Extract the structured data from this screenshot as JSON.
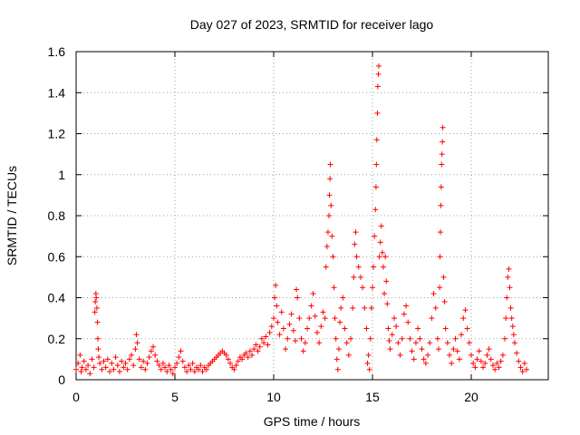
{
  "chart_data": {
    "type": "scatter",
    "title": "Day 027 of 2023, SRMTID for receiver lago",
    "xlabel": "GPS time / hours",
    "ylabel": "SRMTID / TECUs",
    "xlim": [
      0,
      23.9
    ],
    "ylim": [
      0,
      1.6
    ],
    "x_ticks": [
      0,
      5,
      10,
      15,
      20
    ],
    "x_tick_labels": [
      "0",
      "5",
      "10",
      "15",
      "20"
    ],
    "y_ticks": [
      0,
      0.2,
      0.4,
      0.6,
      0.8,
      1.0,
      1.2,
      1.4,
      1.6
    ],
    "y_tick_labels": [
      "0",
      "0.2",
      "0.4",
      "0.6",
      "0.8",
      "1",
      "1.2",
      "1.4",
      "1.6"
    ],
    "grid": true,
    "marker": "+",
    "color": "#ff0000",
    "series": [
      {
        "name": "SRMTID",
        "points": [
          [
            0.0,
            0.05
          ],
          [
            0.1,
            0.08
          ],
          [
            0.2,
            0.12
          ],
          [
            0.25,
            0.04
          ],
          [
            0.3,
            0.06
          ],
          [
            0.4,
            0.09
          ],
          [
            0.5,
            0.05
          ],
          [
            0.6,
            0.07
          ],
          [
            0.7,
            0.03
          ],
          [
            0.8,
            0.1
          ],
          [
            0.9,
            0.06
          ],
          [
            0.95,
            0.33
          ],
          [
            0.97,
            0.38
          ],
          [
            1.0,
            0.42
          ],
          [
            1.02,
            0.4
          ],
          [
            1.05,
            0.35
          ],
          [
            1.08,
            0.28
          ],
          [
            1.1,
            0.2
          ],
          [
            1.12,
            0.15
          ],
          [
            1.15,
            0.11
          ],
          [
            1.2,
            0.08
          ],
          [
            1.3,
            0.05
          ],
          [
            1.4,
            0.09
          ],
          [
            1.5,
            0.06
          ],
          [
            1.6,
            0.1
          ],
          [
            1.7,
            0.04
          ],
          [
            1.8,
            0.08
          ],
          [
            1.9,
            0.05
          ],
          [
            2.0,
            0.11
          ],
          [
            2.1,
            0.07
          ],
          [
            2.2,
            0.04
          ],
          [
            2.3,
            0.09
          ],
          [
            2.4,
            0.06
          ],
          [
            2.5,
            0.08
          ],
          [
            2.6,
            0.05
          ],
          [
            2.7,
            0.1
          ],
          [
            2.8,
            0.12
          ],
          [
            2.9,
            0.07
          ],
          [
            3.0,
            0.15
          ],
          [
            3.05,
            0.22
          ],
          [
            3.1,
            0.18
          ],
          [
            3.2,
            0.1
          ],
          [
            3.3,
            0.06
          ],
          [
            3.4,
            0.09
          ],
          [
            3.5,
            0.05
          ],
          [
            3.6,
            0.08
          ],
          [
            3.7,
            0.11
          ],
          [
            3.8,
            0.14
          ],
          [
            3.9,
            0.16
          ],
          [
            4.0,
            0.12
          ],
          [
            4.1,
            0.09
          ],
          [
            4.2,
            0.07
          ],
          [
            4.3,
            0.05
          ],
          [
            4.4,
            0.08
          ],
          [
            4.5,
            0.06
          ],
          [
            4.6,
            0.04
          ],
          [
            4.7,
            0.07
          ],
          [
            4.8,
            0.05
          ],
          [
            4.9,
            0.03
          ],
          [
            5.0,
            0.06
          ],
          [
            5.1,
            0.08
          ],
          [
            5.2,
            0.11
          ],
          [
            5.3,
            0.14
          ],
          [
            5.4,
            0.09
          ],
          [
            5.5,
            0.06
          ],
          [
            5.6,
            0.04
          ],
          [
            5.7,
            0.07
          ],
          [
            5.8,
            0.05
          ],
          [
            5.9,
            0.08
          ],
          [
            6.0,
            0.04
          ],
          [
            6.1,
            0.06
          ],
          [
            6.2,
            0.05
          ],
          [
            6.3,
            0.07
          ],
          [
            6.4,
            0.04
          ],
          [
            6.5,
            0.06
          ],
          [
            6.6,
            0.05
          ],
          [
            6.7,
            0.07
          ],
          [
            6.8,
            0.08
          ],
          [
            6.9,
            0.09
          ],
          [
            7.0,
            0.1
          ],
          [
            7.1,
            0.11
          ],
          [
            7.2,
            0.12
          ],
          [
            7.3,
            0.13
          ],
          [
            7.4,
            0.14
          ],
          [
            7.5,
            0.13
          ],
          [
            7.6,
            0.12
          ],
          [
            7.7,
            0.1
          ],
          [
            7.8,
            0.08
          ],
          [
            7.9,
            0.06
          ],
          [
            8.0,
            0.05
          ],
          [
            8.1,
            0.07
          ],
          [
            8.2,
            0.09
          ],
          [
            8.3,
            0.11
          ],
          [
            8.4,
            0.1
          ],
          [
            8.5,
            0.12
          ],
          [
            8.6,
            0.13
          ],
          [
            8.7,
            0.11
          ],
          [
            8.8,
            0.14
          ],
          [
            8.9,
            0.12
          ],
          [
            9.0,
            0.15
          ],
          [
            9.1,
            0.17
          ],
          [
            9.2,
            0.14
          ],
          [
            9.3,
            0.16
          ],
          [
            9.4,
            0.2
          ],
          [
            9.5,
            0.18
          ],
          [
            9.6,
            0.21
          ],
          [
            9.7,
            0.17
          ],
          [
            9.8,
            0.23
          ],
          [
            9.9,
            0.26
          ],
          [
            10.0,
            0.3
          ],
          [
            10.05,
            0.4
          ],
          [
            10.1,
            0.46
          ],
          [
            10.15,
            0.36
          ],
          [
            10.2,
            0.28
          ],
          [
            10.3,
            0.22
          ],
          [
            10.4,
            0.33
          ],
          [
            10.5,
            0.25
          ],
          [
            10.6,
            0.15
          ],
          [
            10.7,
            0.2
          ],
          [
            10.8,
            0.27
          ],
          [
            10.9,
            0.32
          ],
          [
            11.0,
            0.24
          ],
          [
            11.1,
            0.19
          ],
          [
            11.15,
            0.44
          ],
          [
            11.2,
            0.4
          ],
          [
            11.3,
            0.3
          ],
          [
            11.4,
            0.2
          ],
          [
            11.5,
            0.14
          ],
          [
            11.6,
            0.18
          ],
          [
            11.7,
            0.25
          ],
          [
            11.8,
            0.3
          ],
          [
            11.9,
            0.36
          ],
          [
            12.0,
            0.42
          ],
          [
            12.1,
            0.31
          ],
          [
            12.2,
            0.23
          ],
          [
            12.3,
            0.18
          ],
          [
            12.4,
            0.26
          ],
          [
            12.5,
            0.33
          ],
          [
            12.6,
            0.3
          ],
          [
            12.65,
            0.55
          ],
          [
            12.7,
            0.65
          ],
          [
            12.75,
            0.72
          ],
          [
            12.8,
            0.8
          ],
          [
            12.82,
            0.9
          ],
          [
            12.85,
            0.98
          ],
          [
            12.87,
            1.05
          ],
          [
            12.9,
            0.85
          ],
          [
            12.95,
            0.7
          ],
          [
            13.0,
            0.6
          ],
          [
            13.05,
            0.45
          ],
          [
            13.1,
            0.3
          ],
          [
            13.15,
            0.2
          ],
          [
            13.2,
            0.1
          ],
          [
            13.25,
            0.05
          ],
          [
            13.3,
            0.15
          ],
          [
            13.35,
            0.28
          ],
          [
            13.4,
            0.35
          ],
          [
            13.5,
            0.4
          ],
          [
            13.6,
            0.25
          ],
          [
            13.7,
            0.18
          ],
          [
            13.8,
            0.12
          ],
          [
            13.9,
            0.2
          ],
          [
            14.0,
            0.35
          ],
          [
            14.05,
            0.5
          ],
          [
            14.1,
            0.66
          ],
          [
            14.15,
            0.72
          ],
          [
            14.2,
            0.6
          ],
          [
            14.3,
            0.55
          ],
          [
            14.4,
            0.5
          ],
          [
            14.5,
            0.45
          ],
          [
            14.6,
            0.35
          ],
          [
            14.7,
            0.25
          ],
          [
            14.75,
            0.08
          ],
          [
            14.8,
            0.12
          ],
          [
            14.85,
            0.05
          ],
          [
            14.9,
            0.2
          ],
          [
            14.95,
            0.35
          ],
          [
            15.0,
            0.45
          ],
          [
            15.05,
            0.55
          ],
          [
            15.1,
            0.7
          ],
          [
            15.15,
            0.83
          ],
          [
            15.18,
            0.94
          ],
          [
            15.2,
            1.05
          ],
          [
            15.22,
            1.17
          ],
          [
            15.25,
            1.3
          ],
          [
            15.27,
            1.43
          ],
          [
            15.3,
            1.49
          ],
          [
            15.32,
            1.53
          ],
          [
            15.35,
            0.6
          ],
          [
            15.4,
            0.67
          ],
          [
            15.45,
            0.75
          ],
          [
            15.5,
            0.62
          ],
          [
            15.55,
            0.55
          ],
          [
            15.6,
            0.42
          ],
          [
            15.65,
            0.6
          ],
          [
            15.7,
            0.48
          ],
          [
            15.75,
            0.37
          ],
          [
            15.8,
            0.25
          ],
          [
            15.85,
            0.19
          ],
          [
            15.9,
            0.15
          ],
          [
            16.0,
            0.22
          ],
          [
            16.1,
            0.3
          ],
          [
            16.2,
            0.26
          ],
          [
            16.3,
            0.18
          ],
          [
            16.4,
            0.12
          ],
          [
            16.5,
            0.2
          ],
          [
            16.6,
            0.32
          ],
          [
            16.7,
            0.36
          ],
          [
            16.8,
            0.28
          ],
          [
            16.9,
            0.2
          ],
          [
            17.0,
            0.14
          ],
          [
            17.1,
            0.1
          ],
          [
            17.2,
            0.18
          ],
          [
            17.3,
            0.25
          ],
          [
            17.4,
            0.2
          ],
          [
            17.5,
            0.15
          ],
          [
            17.6,
            0.1
          ],
          [
            17.7,
            0.08
          ],
          [
            17.8,
            0.12
          ],
          [
            17.9,
            0.18
          ],
          [
            18.0,
            0.3
          ],
          [
            18.1,
            0.42
          ],
          [
            18.2,
            0.35
          ],
          [
            18.3,
            0.2
          ],
          [
            18.35,
            0.15
          ],
          [
            18.4,
            0.45
          ],
          [
            18.42,
            0.6
          ],
          [
            18.44,
            0.72
          ],
          [
            18.46,
            0.85
          ],
          [
            18.48,
            0.94
          ],
          [
            18.5,
            1.05
          ],
          [
            18.52,
            1.1
          ],
          [
            18.54,
            1.16
          ],
          [
            18.56,
            1.23
          ],
          [
            18.6,
            0.5
          ],
          [
            18.65,
            0.38
          ],
          [
            18.7,
            0.25
          ],
          [
            18.8,
            0.18
          ],
          [
            18.9,
            0.12
          ],
          [
            19.0,
            0.08
          ],
          [
            19.1,
            0.15
          ],
          [
            19.2,
            0.2
          ],
          [
            19.3,
            0.14
          ],
          [
            19.4,
            0.1
          ],
          [
            19.5,
            0.22
          ],
          [
            19.6,
            0.3
          ],
          [
            19.7,
            0.34
          ],
          [
            19.8,
            0.25
          ],
          [
            19.9,
            0.18
          ],
          [
            20.0,
            0.12
          ],
          [
            20.1,
            0.08
          ],
          [
            20.2,
            0.06
          ],
          [
            20.3,
            0.1
          ],
          [
            20.4,
            0.14
          ],
          [
            20.5,
            0.09
          ],
          [
            20.6,
            0.06
          ],
          [
            20.7,
            0.08
          ],
          [
            20.8,
            0.12
          ],
          [
            20.9,
            0.15
          ],
          [
            21.0,
            0.1
          ],
          [
            21.1,
            0.07
          ],
          [
            21.2,
            0.05
          ],
          [
            21.3,
            0.08
          ],
          [
            21.4,
            0.06
          ],
          [
            21.5,
            0.09
          ],
          [
            21.6,
            0.12
          ],
          [
            21.7,
            0.2
          ],
          [
            21.75,
            0.3
          ],
          [
            21.8,
            0.4
          ],
          [
            21.85,
            0.5
          ],
          [
            21.9,
            0.54
          ],
          [
            21.95,
            0.45
          ],
          [
            22.0,
            0.35
          ],
          [
            22.05,
            0.3
          ],
          [
            22.1,
            0.26
          ],
          [
            22.15,
            0.22
          ],
          [
            22.2,
            0.18
          ],
          [
            22.3,
            0.13
          ],
          [
            22.4,
            0.09
          ],
          [
            22.5,
            0.06
          ],
          [
            22.6,
            0.04
          ],
          [
            22.7,
            0.08
          ],
          [
            22.8,
            0.05
          ]
        ]
      }
    ]
  }
}
